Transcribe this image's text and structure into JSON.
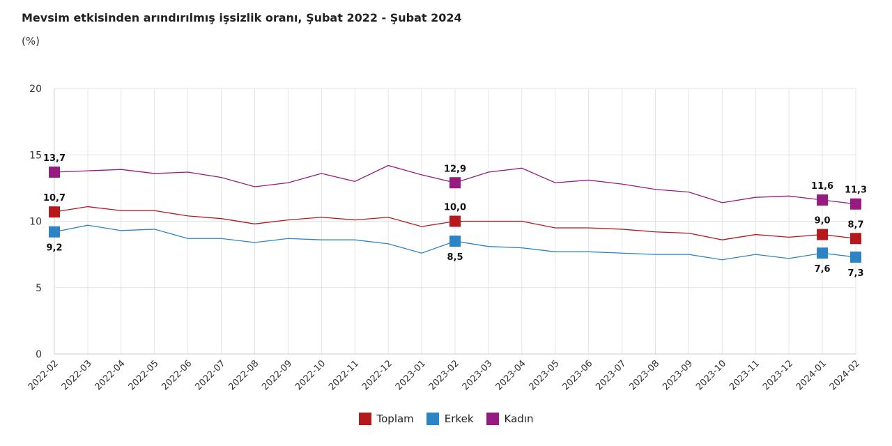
{
  "chart_data": {
    "type": "line",
    "title": "Mevsim etkisinden arındırılmış işsizlik oranı, Şubat 2022 - Şubat 2024",
    "subtitle": "(%)",
    "ylim": [
      0,
      20
    ],
    "yticks": [
      "0",
      "5",
      "10",
      "15",
      "20"
    ],
    "grid": true,
    "legend_position": "bottom",
    "categories": [
      "2022-02",
      "2022-03",
      "2022-04",
      "2022-05",
      "2022-06",
      "2022-07",
      "2022-08",
      "2022-09",
      "2022-10",
      "2022-11",
      "2022-12",
      "2023-01",
      "2023-02",
      "2023-03",
      "2023-04",
      "2023-05",
      "2023-06",
      "2023-07",
      "2023-08",
      "2023-09",
      "2023-10",
      "2023-11",
      "2023-12",
      "2024-01",
      "2024-02"
    ],
    "labeled_indices": [
      0,
      12,
      23,
      24
    ],
    "series": [
      {
        "name": "Toplam",
        "color": "#b5191c",
        "label_pos": "above",
        "values": [
          10.7,
          11.1,
          10.8,
          10.8,
          10.4,
          10.2,
          9.8,
          10.1,
          10.3,
          10.1,
          10.3,
          9.6,
          10.0,
          10.0,
          10.0,
          9.5,
          9.5,
          9.4,
          9.2,
          9.1,
          8.6,
          9.0,
          8.8,
          9.0,
          8.7
        ]
      },
      {
        "name": "Erkek",
        "color": "#2c83c6",
        "label_pos": "below",
        "values": [
          9.2,
          9.7,
          9.3,
          9.4,
          8.7,
          8.7,
          8.4,
          8.7,
          8.6,
          8.6,
          8.3,
          7.6,
          8.5,
          8.1,
          8.0,
          7.7,
          7.7,
          7.6,
          7.5,
          7.5,
          7.1,
          7.5,
          7.2,
          7.6,
          7.3
        ]
      },
      {
        "name": "Kadın",
        "color": "#951b81",
        "label_pos": "above",
        "values": [
          13.7,
          13.8,
          13.9,
          13.6,
          13.7,
          13.3,
          12.6,
          12.9,
          13.6,
          13.0,
          14.2,
          13.5,
          12.9,
          13.7,
          14.0,
          12.9,
          13.1,
          12.8,
          12.4,
          12.2,
          11.4,
          11.8,
          11.9,
          11.6,
          11.3
        ]
      }
    ]
  }
}
